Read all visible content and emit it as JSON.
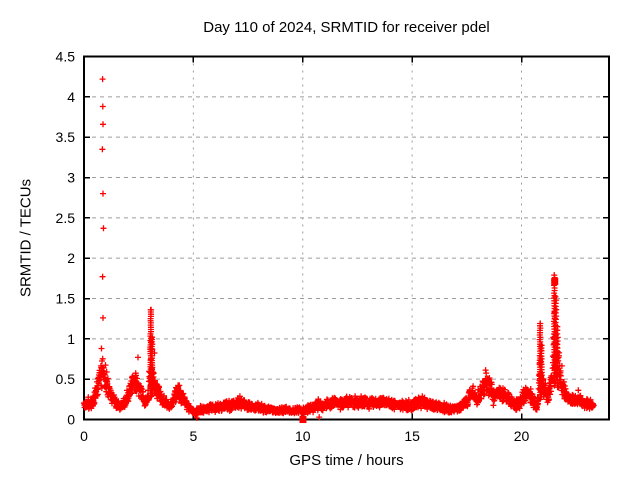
{
  "chart_data": {
    "type": "scatter",
    "title": "Day 110 of 2024, SRMTID for receiver pdel",
    "xlabel": "GPS time / hours",
    "ylabel": "SRMTID / TECUs",
    "xlim": [
      0,
      24
    ],
    "ylim": [
      0,
      4.5
    ],
    "xticks": [
      0,
      5,
      10,
      15,
      20
    ],
    "xtick_labels": [
      "0",
      "5",
      "10",
      "15",
      "20"
    ],
    "yticks": [
      0,
      0.5,
      1,
      1.5,
      2,
      2.5,
      3,
      3.5,
      4,
      4.5
    ],
    "ytick_labels": [
      "0",
      "0.5",
      "1",
      "1.5",
      "2",
      "2.5",
      "3",
      "3.5",
      "4",
      "4.5"
    ],
    "grid": true,
    "legend": "none",
    "marker": "plus",
    "colors": {
      "points": "#ff0000",
      "grid": "#9c9c9c",
      "axis": "#000000",
      "background": "#ffffff",
      "text": "#000000"
    },
    "x_start": 0.0,
    "x_end": 23.3,
    "points_per_hour": 100,
    "noise_seed": 17,
    "envelope": [
      [
        0.0,
        0.2,
        0.07
      ],
      [
        0.25,
        0.18,
        0.06
      ],
      [
        0.45,
        0.24,
        0.09
      ],
      [
        0.6,
        0.38,
        0.14
      ],
      [
        0.75,
        0.55,
        0.22
      ],
      [
        0.9,
        0.58,
        0.26
      ],
      [
        1.0,
        0.48,
        0.2
      ],
      [
        1.15,
        0.35,
        0.13
      ],
      [
        1.3,
        0.27,
        0.1
      ],
      [
        1.5,
        0.19,
        0.07
      ],
      [
        1.7,
        0.16,
        0.06
      ],
      [
        1.9,
        0.22,
        0.09
      ],
      [
        2.1,
        0.38,
        0.14
      ],
      [
        2.25,
        0.47,
        0.16
      ],
      [
        2.45,
        0.42,
        0.16
      ],
      [
        2.6,
        0.33,
        0.12
      ],
      [
        2.8,
        0.22,
        0.08
      ],
      [
        2.95,
        0.3,
        0.12
      ],
      [
        3.05,
        0.75,
        0.55
      ],
      [
        3.15,
        0.55,
        0.38
      ],
      [
        3.3,
        0.38,
        0.14
      ],
      [
        3.5,
        0.28,
        0.1
      ],
      [
        3.7,
        0.22,
        0.08
      ],
      [
        3.9,
        0.17,
        0.06
      ],
      [
        4.1,
        0.24,
        0.1
      ],
      [
        4.25,
        0.36,
        0.14
      ],
      [
        4.45,
        0.28,
        0.11
      ],
      [
        4.65,
        0.19,
        0.07
      ],
      [
        4.85,
        0.13,
        0.05
      ],
      [
        5.05,
        0.09,
        0.05
      ],
      [
        5.25,
        0.1,
        0.05
      ],
      [
        5.5,
        0.13,
        0.05
      ],
      [
        5.8,
        0.14,
        0.06
      ],
      [
        6.2,
        0.16,
        0.07
      ],
      [
        6.7,
        0.18,
        0.08
      ],
      [
        7.2,
        0.2,
        0.08
      ],
      [
        7.6,
        0.17,
        0.07
      ],
      [
        8.0,
        0.15,
        0.06
      ],
      [
        8.4,
        0.12,
        0.05
      ],
      [
        8.8,
        0.11,
        0.05
      ],
      [
        9.2,
        0.12,
        0.05
      ],
      [
        9.6,
        0.11,
        0.05
      ],
      [
        10.0,
        0.11,
        0.05
      ],
      [
        10.3,
        0.13,
        0.06
      ],
      [
        10.7,
        0.18,
        0.08
      ],
      [
        11.0,
        0.17,
        0.07
      ],
      [
        11.4,
        0.21,
        0.08
      ],
      [
        11.8,
        0.2,
        0.08
      ],
      [
        12.2,
        0.22,
        0.08
      ],
      [
        12.6,
        0.2,
        0.08
      ],
      [
        13.0,
        0.21,
        0.08
      ],
      [
        13.4,
        0.22,
        0.08
      ],
      [
        13.8,
        0.2,
        0.08
      ],
      [
        14.2,
        0.19,
        0.07
      ],
      [
        14.6,
        0.17,
        0.07
      ],
      [
        15.0,
        0.18,
        0.07
      ],
      [
        15.3,
        0.21,
        0.08
      ],
      [
        15.7,
        0.18,
        0.07
      ],
      [
        16.1,
        0.16,
        0.06
      ],
      [
        16.5,
        0.14,
        0.06
      ],
      [
        16.9,
        0.12,
        0.05
      ],
      [
        17.3,
        0.17,
        0.07
      ],
      [
        17.6,
        0.28,
        0.1
      ],
      [
        17.75,
        0.33,
        0.11
      ],
      [
        17.95,
        0.24,
        0.09
      ],
      [
        18.15,
        0.33,
        0.12
      ],
      [
        18.35,
        0.48,
        0.16
      ],
      [
        18.55,
        0.4,
        0.14
      ],
      [
        18.75,
        0.28,
        0.1
      ],
      [
        18.95,
        0.35,
        0.13
      ],
      [
        19.15,
        0.31,
        0.11
      ],
      [
        19.45,
        0.24,
        0.09
      ],
      [
        19.75,
        0.17,
        0.07
      ],
      [
        20.0,
        0.24,
        0.1
      ],
      [
        20.3,
        0.33,
        0.12
      ],
      [
        20.55,
        0.22,
        0.09
      ],
      [
        20.7,
        0.14,
        0.06
      ],
      [
        20.85,
        0.55,
        0.4
      ],
      [
        21.0,
        0.38,
        0.15
      ],
      [
        21.2,
        0.33,
        0.12
      ],
      [
        21.4,
        0.45,
        0.18
      ],
      [
        21.5,
        0.95,
        0.6
      ],
      [
        21.6,
        0.85,
        0.5
      ],
      [
        21.75,
        0.55,
        0.22
      ],
      [
        21.9,
        0.4,
        0.13
      ],
      [
        22.1,
        0.28,
        0.1
      ],
      [
        22.35,
        0.24,
        0.08
      ],
      [
        22.6,
        0.25,
        0.08
      ],
      [
        22.85,
        0.2,
        0.07
      ],
      [
        23.1,
        0.19,
        0.07
      ],
      [
        23.3,
        0.17,
        0.06
      ]
    ],
    "columns": [
      [
        3.05,
        0.3,
        1.36,
        40
      ],
      [
        3.11,
        0.3,
        1.02,
        26
      ],
      [
        20.85,
        0.25,
        1.19,
        34
      ],
      [
        20.91,
        0.28,
        0.92,
        20
      ],
      [
        21.5,
        0.42,
        1.79,
        44
      ],
      [
        21.57,
        0.45,
        1.52,
        28
      ],
      [
        21.64,
        0.4,
        1.15,
        18
      ]
    ],
    "outliers": [
      [
        0.85,
        4.22
      ],
      [
        0.86,
        3.88
      ],
      [
        0.87,
        3.66
      ],
      [
        0.84,
        3.35
      ],
      [
        0.87,
        2.8
      ],
      [
        0.89,
        2.37
      ],
      [
        0.85,
        1.77
      ],
      [
        0.87,
        1.26
      ],
      [
        0.8,
        0.88
      ],
      [
        2.47,
        0.77
      ],
      [
        5.15,
        0.02
      ],
      [
        10.75,
        0.03
      ],
      [
        3.05,
        1.36
      ],
      [
        20.86,
        1.19
      ],
      [
        21.5,
        1.79
      ]
    ],
    "squares": [
      [
        10.01,
        0.0
      ],
      [
        21.52,
        1.71
      ]
    ]
  }
}
